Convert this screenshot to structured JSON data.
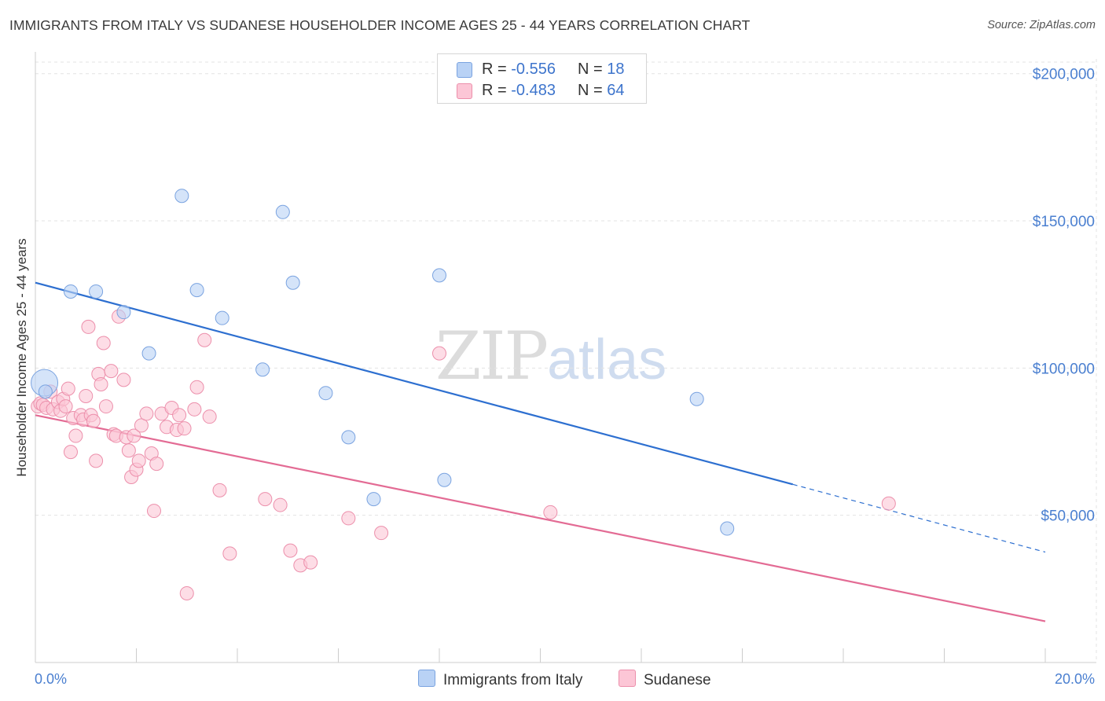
{
  "title": "IMMIGRANTS FROM ITALY VS SUDANESE HOUSEHOLDER INCOME AGES 25 - 44 YEARS CORRELATION CHART",
  "source": "Source: ZipAtlas.com",
  "watermark": {
    "zip": "ZIP",
    "atlas": "atlas"
  },
  "legend": {
    "r_label": "R =",
    "n_label": "N =",
    "rows": [
      {
        "r": "-0.556",
        "n": "18",
        "color": "#b9d2f5",
        "border": "#7aa3e0"
      },
      {
        "r": "-0.483",
        "n": "64",
        "color": "#fcc6d6",
        "border": "#ec8fab"
      }
    ]
  },
  "bottom_legend": [
    "Immigrants from Italy",
    "Sudanese"
  ],
  "chart_data": {
    "type": "scatter",
    "title": "IMMIGRANTS FROM ITALY VS SUDANESE HOUSEHOLDER INCOME AGES 25 - 44 YEARS CORRELATION CHART",
    "xlabel": "",
    "ylabel": "Householder Income Ages 25 - 44 years",
    "xlim": [
      0,
      20
    ],
    "ylim": [
      0,
      205000
    ],
    "x_tick_labels": [
      "0.0%",
      "20.0%"
    ],
    "y_ticks": [
      50000,
      100000,
      150000,
      200000
    ],
    "y_tick_labels": [
      "$50,000",
      "$100,000",
      "$150,000",
      "$200,000"
    ],
    "grid": true,
    "series": [
      {
        "name": "Immigrants from Italy",
        "color": "#7aa3e0",
        "fill": "#b9d2f5",
        "trend_color": "#2d6fd0",
        "trend": {
          "x0": 0,
          "y0": 129000,
          "x1": 15.0,
          "y1": 60500,
          "x_dash_end": 20.0,
          "y_dash_end": 37500
        },
        "points": [
          {
            "x": 0.18,
            "y": 95000,
            "big": true
          },
          {
            "x": 0.2,
            "y": 92000
          },
          {
            "x": 0.7,
            "y": 126000
          },
          {
            "x": 1.2,
            "y": 126000
          },
          {
            "x": 1.75,
            "y": 119000
          },
          {
            "x": 2.25,
            "y": 105000
          },
          {
            "x": 2.9,
            "y": 158500
          },
          {
            "x": 3.2,
            "y": 126500
          },
          {
            "x": 3.7,
            "y": 117000
          },
          {
            "x": 4.5,
            "y": 99500
          },
          {
            "x": 4.9,
            "y": 153000
          },
          {
            "x": 5.1,
            "y": 129000
          },
          {
            "x": 5.75,
            "y": 91500
          },
          {
            "x": 6.2,
            "y": 76500
          },
          {
            "x": 6.7,
            "y": 55500
          },
          {
            "x": 8.0,
            "y": 131500
          },
          {
            "x": 8.1,
            "y": 62000
          },
          {
            "x": 13.1,
            "y": 89500
          },
          {
            "x": 13.7,
            "y": 45500
          }
        ]
      },
      {
        "name": "Sudanese",
        "color": "#ec8fab",
        "fill": "#fcc6d6",
        "trend_color": "#e36b94",
        "trend": {
          "x0": 0,
          "y0": 84000,
          "x1": 20.0,
          "y1": 14000
        },
        "points": [
          {
            "x": 0.05,
            "y": 87000
          },
          {
            "x": 0.1,
            "y": 88000
          },
          {
            "x": 0.15,
            "y": 87500
          },
          {
            "x": 0.22,
            "y": 86500
          },
          {
            "x": 0.3,
            "y": 92000
          },
          {
            "x": 0.35,
            "y": 86000
          },
          {
            "x": 0.45,
            "y": 88500
          },
          {
            "x": 0.5,
            "y": 85500
          },
          {
            "x": 0.55,
            "y": 89500
          },
          {
            "x": 0.6,
            "y": 87000
          },
          {
            "x": 0.65,
            "y": 93000
          },
          {
            "x": 0.7,
            "y": 71500
          },
          {
            "x": 0.75,
            "y": 83000
          },
          {
            "x": 0.8,
            "y": 77000
          },
          {
            "x": 0.9,
            "y": 84000
          },
          {
            "x": 0.95,
            "y": 82500
          },
          {
            "x": 1.0,
            "y": 90500
          },
          {
            "x": 1.05,
            "y": 114000
          },
          {
            "x": 1.1,
            "y": 84000
          },
          {
            "x": 1.15,
            "y": 82000
          },
          {
            "x": 1.2,
            "y": 68500
          },
          {
            "x": 1.25,
            "y": 98000
          },
          {
            "x": 1.3,
            "y": 94500
          },
          {
            "x": 1.35,
            "y": 108500
          },
          {
            "x": 1.4,
            "y": 87000
          },
          {
            "x": 1.5,
            "y": 99000
          },
          {
            "x": 1.55,
            "y": 77500
          },
          {
            "x": 1.6,
            "y": 77000
          },
          {
            "x": 1.65,
            "y": 117500
          },
          {
            "x": 1.75,
            "y": 96000
          },
          {
            "x": 1.8,
            "y": 76500
          },
          {
            "x": 1.85,
            "y": 72000
          },
          {
            "x": 1.9,
            "y": 63000
          },
          {
            "x": 1.95,
            "y": 77000
          },
          {
            "x": 2.0,
            "y": 65500
          },
          {
            "x": 2.05,
            "y": 68500
          },
          {
            "x": 2.1,
            "y": 80500
          },
          {
            "x": 2.2,
            "y": 84500
          },
          {
            "x": 2.3,
            "y": 71000
          },
          {
            "x": 2.35,
            "y": 51500
          },
          {
            "x": 2.4,
            "y": 67500
          },
          {
            "x": 2.5,
            "y": 84500
          },
          {
            "x": 2.6,
            "y": 80000
          },
          {
            "x": 2.7,
            "y": 86500
          },
          {
            "x": 2.8,
            "y": 79000
          },
          {
            "x": 2.85,
            "y": 84000
          },
          {
            "x": 2.95,
            "y": 79500
          },
          {
            "x": 3.0,
            "y": 23500
          },
          {
            "x": 3.15,
            "y": 86000
          },
          {
            "x": 3.2,
            "y": 93500
          },
          {
            "x": 3.35,
            "y": 109500
          },
          {
            "x": 3.45,
            "y": 83500
          },
          {
            "x": 3.65,
            "y": 58500
          },
          {
            "x": 3.85,
            "y": 37000
          },
          {
            "x": 4.55,
            "y": 55500
          },
          {
            "x": 4.85,
            "y": 53500
          },
          {
            "x": 5.05,
            "y": 38000
          },
          {
            "x": 5.25,
            "y": 33000
          },
          {
            "x": 5.45,
            "y": 34000
          },
          {
            "x": 6.2,
            "y": 49000
          },
          {
            "x": 6.85,
            "y": 44000
          },
          {
            "x": 8.0,
            "y": 105000
          },
          {
            "x": 10.2,
            "y": 51000
          },
          {
            "x": 16.9,
            "y": 54000
          }
        ]
      }
    ]
  }
}
